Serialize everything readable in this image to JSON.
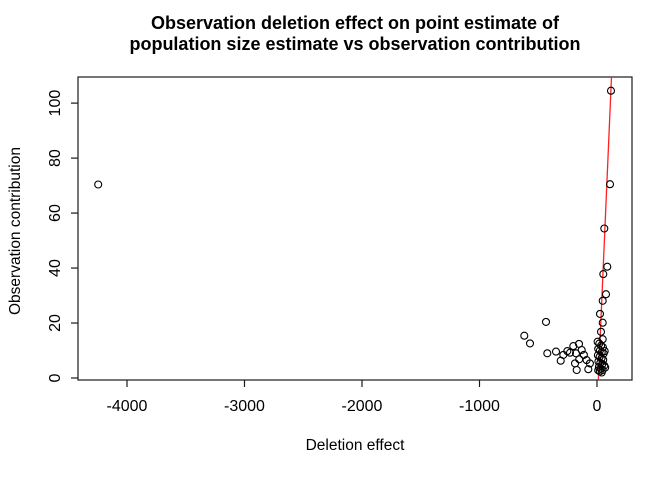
{
  "figure": {
    "title_line1": "Observation deletion effect on point estimate of",
    "title_line2": "population size estimate vs observation contribution"
  },
  "chart_data": {
    "type": "scatter",
    "title": "Observation deletion effect on point estimate of population size estimate vs observation contribution",
    "xlabel": "Deletion effect",
    "ylabel": "Observation contribution",
    "xlim": [
      -4417,
      298
    ],
    "ylim": [
      -0.73,
      109.5
    ],
    "x_ticks": [
      -4000,
      -3000,
      -2000,
      -1000,
      0
    ],
    "y_ticks": [
      0,
      20,
      40,
      60,
      80,
      100
    ],
    "grid": false,
    "legend": null,
    "background_color": "#ffffff",
    "axis_color": "#1a1a1a",
    "point_color": "#000000",
    "line_color": "#ff2020",
    "trend_line": {
      "x1": 11,
      "y1": -1.1,
      "x2": 123.5,
      "y2": 109.5
    },
    "points": [
      [
        -4245,
        70.4
      ],
      [
        -619,
        15.4
      ],
      [
        -570,
        12.6
      ],
      [
        -434,
        20.4
      ],
      [
        -423,
        9.0
      ],
      [
        -349,
        9.6
      ],
      [
        -287,
        8.4
      ],
      [
        -309,
        6.3
      ],
      [
        -253,
        9.8
      ],
      [
        -202,
        11.6
      ],
      [
        -153,
        12.4
      ],
      [
        -230,
        9.2
      ],
      [
        -179,
        9.0
      ],
      [
        -130,
        10.2
      ],
      [
        -111,
        8.4
      ],
      [
        -151,
        6.8
      ],
      [
        -187,
        5.3
      ],
      [
        -88,
        6.5
      ],
      [
        -60,
        5.3
      ],
      [
        -173,
        2.9
      ],
      [
        -74,
        3.2
      ],
      [
        119,
        104.5
      ],
      [
        111,
        70.5
      ],
      [
        62,
        54.4
      ],
      [
        88,
        40.5
      ],
      [
        54,
        37.8
      ],
      [
        77,
        30.5
      ],
      [
        49,
        28.1
      ],
      [
        26,
        23.3
      ],
      [
        49,
        20.1
      ],
      [
        34,
        16.8
      ],
      [
        49,
        14.1
      ],
      [
        5,
        13.2
      ],
      [
        20,
        12.5
      ],
      [
        35,
        11.8
      ],
      [
        50,
        11.2
      ],
      [
        10,
        10.6
      ],
      [
        25,
        10.0
      ],
      [
        40,
        9.4
      ],
      [
        57,
        8.9
      ],
      [
        8,
        8.3
      ],
      [
        22,
        7.7
      ],
      [
        38,
        7.2
      ],
      [
        53,
        6.6
      ],
      [
        12,
        6.0
      ],
      [
        28,
        5.5
      ],
      [
        45,
        5.0
      ],
      [
        62,
        4.5
      ],
      [
        16,
        4.0
      ],
      [
        32,
        3.4
      ],
      [
        48,
        2.9
      ],
      [
        24,
        2.4
      ],
      [
        40,
        2.0
      ],
      [
        10,
        2.8
      ],
      [
        66,
        9.8
      ],
      [
        70,
        3.8
      ]
    ]
  }
}
